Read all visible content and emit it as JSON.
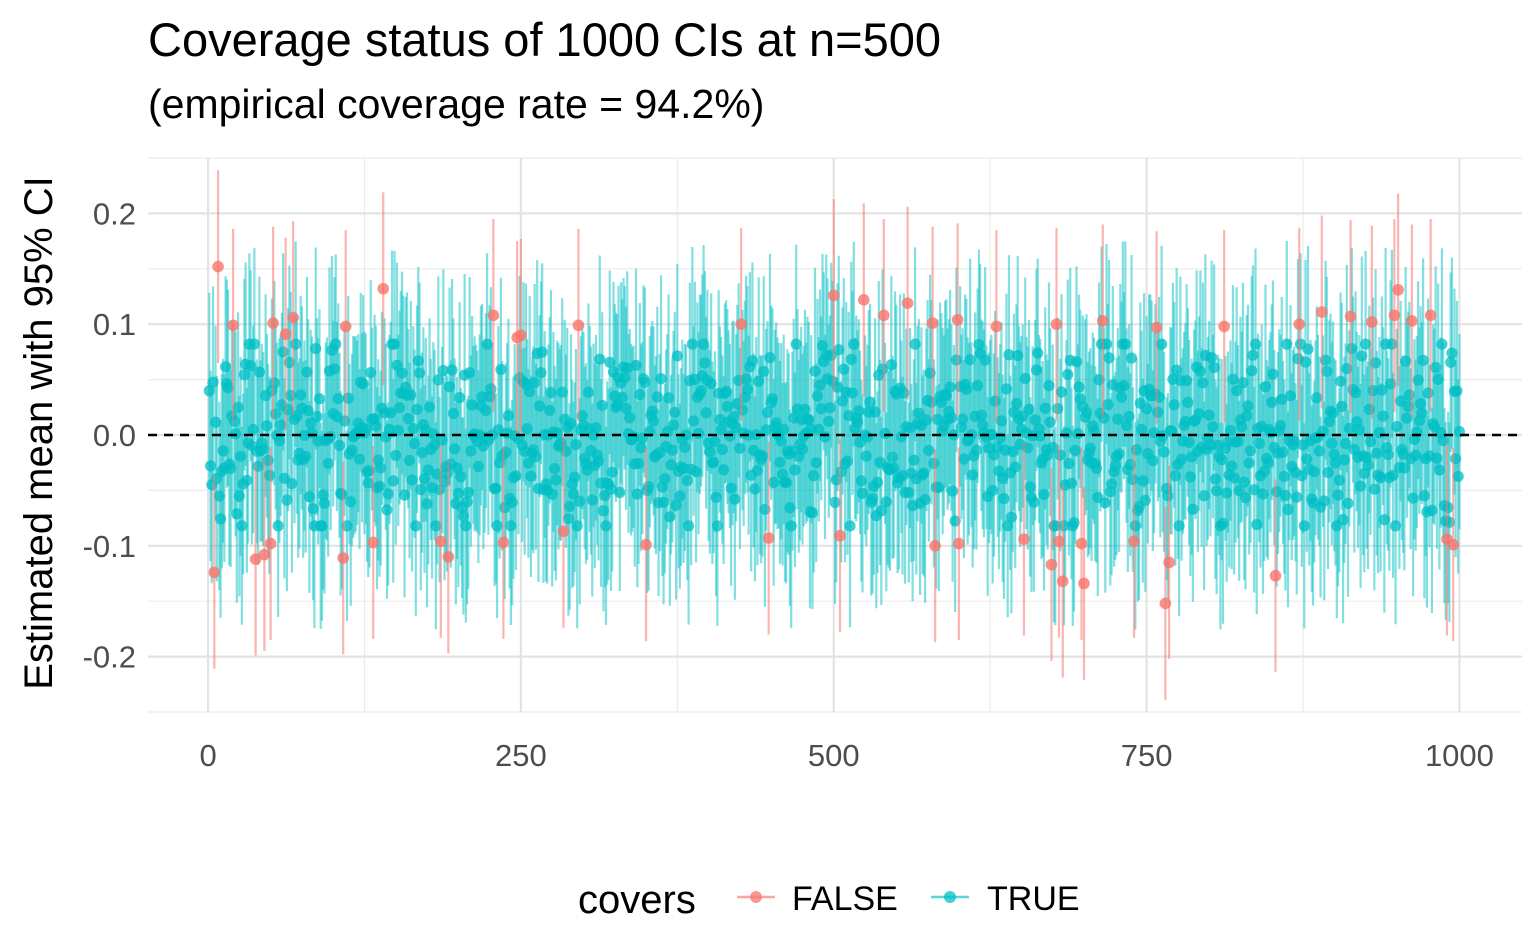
{
  "chart_data": {
    "type": "scatter",
    "subtype": "pointrange",
    "title": "Coverage status of 1000 CIs at n=500",
    "subtitle": "(empirical coverage rate = 94.2%)",
    "xlabel": "",
    "ylabel": "Estimated mean with 95% CI",
    "xlim": [
      -48,
      1050
    ],
    "ylim": [
      -0.25,
      0.25
    ],
    "x_ticks": [
      0,
      250,
      500,
      750,
      1000
    ],
    "x_tick_labels": [
      "0",
      "250",
      "500",
      "750",
      "1000"
    ],
    "y_ticks": [
      -0.2,
      -0.1,
      0.0,
      0.1,
      0.2
    ],
    "y_tick_labels": [
      "-0.2",
      "-0.1",
      "0.0",
      "0.1",
      "0.2"
    ],
    "reference_line": {
      "y": 0,
      "style": "dashed",
      "color": "#000000"
    },
    "grid": true,
    "legend": {
      "title": "covers",
      "position": "bottom"
    },
    "n_intervals": 1000,
    "ci_half_width": 0.087,
    "series": [
      {
        "name": "FALSE",
        "color": "#F8766D",
        "count": 58,
        "points": [
          [
            5,
            -0.124
          ],
          [
            8,
            0.152
          ],
          [
            38,
            -0.112
          ],
          [
            45,
            -0.108
          ],
          [
            50,
            -0.098
          ],
          [
            52,
            0.101
          ],
          [
            62,
            0.091
          ],
          [
            68,
            0.106
          ],
          [
            108,
            -0.111
          ],
          [
            140,
            0.132
          ],
          [
            192,
            -0.11
          ],
          [
            228,
            0.108
          ],
          [
            236,
            -0.097
          ],
          [
            247,
            0.088
          ],
          [
            250,
            0.09
          ],
          [
            284,
            -0.087
          ],
          [
            448,
            -0.093
          ],
          [
            500,
            0.126
          ],
          [
            505,
            -0.091
          ],
          [
            524,
            0.122
          ],
          [
            540,
            0.108
          ],
          [
            559,
            0.119
          ],
          [
            579,
            0.101
          ],
          [
            581,
            -0.1
          ],
          [
            599,
            0.104
          ],
          [
            652,
            -0.094
          ],
          [
            674,
            -0.117
          ],
          [
            678,
            0.1
          ],
          [
            680,
            -0.096
          ],
          [
            683,
            -0.132
          ],
          [
            698,
            -0.098
          ],
          [
            700,
            -0.134
          ],
          [
            715,
            0.103
          ],
          [
            740,
            -0.096
          ],
          [
            758,
            0.097
          ],
          [
            765,
            -0.152
          ],
          [
            768,
            -0.115
          ],
          [
            853,
            -0.127
          ],
          [
            890,
            0.111
          ],
          [
            913,
            0.107
          ],
          [
            948,
            0.108
          ],
          [
            951,
            0.131
          ],
          [
            977,
            0.108
          ],
          [
            990,
            -0.094
          ],
          [
            186,
            -0.096
          ],
          [
            132,
            -0.097
          ],
          [
            296,
            0.099
          ],
          [
            426,
            0.1
          ],
          [
            630,
            0.098
          ],
          [
            812,
            0.098
          ],
          [
            872,
            0.1
          ],
          [
            930,
            0.102
          ],
          [
            962,
            0.103
          ],
          [
            20,
            0.099
          ],
          [
            110,
            0.098
          ],
          [
            350,
            -0.099
          ],
          [
            600,
            -0.098
          ],
          [
            995,
            -0.099
          ]
        ]
      },
      {
        "name": "TRUE",
        "color": "#00BFC4",
        "count": 942
      }
    ]
  }
}
